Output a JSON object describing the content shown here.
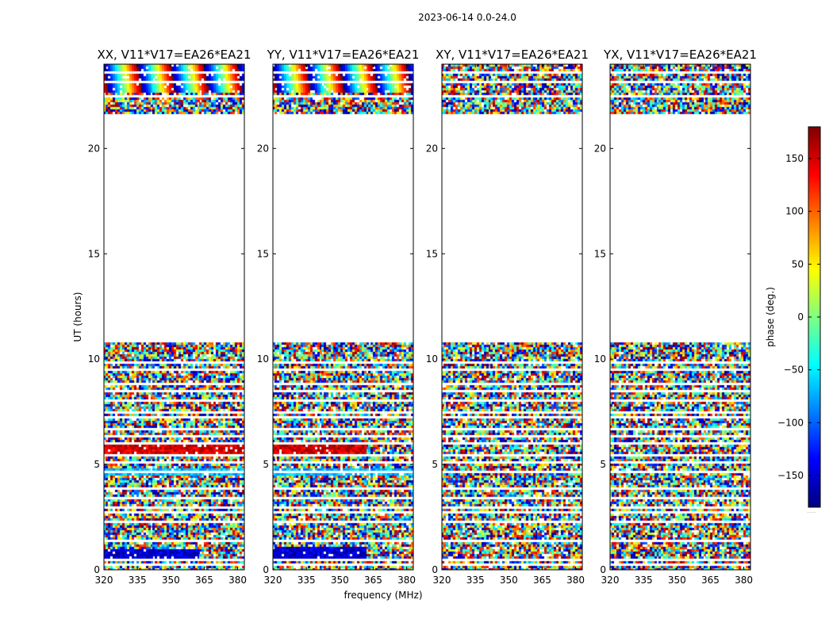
{
  "suptitle": "2023-06-14 0.0-24.0",
  "chart_data": {
    "type": "heatmap",
    "xlabel": "frequency (MHz)",
    "ylabel": "UT (hours)",
    "xlim": [
      320,
      383
    ],
    "ylim": [
      0,
      24
    ],
    "xticks": [
      320,
      335,
      350,
      365,
      380
    ],
    "yticks": [
      0,
      5,
      10,
      15,
      20
    ],
    "panels": [
      {
        "title": "XX, V11*V17=EA26*EA21",
        "pol": "XX"
      },
      {
        "title": "YY, V11*V17=EA26*EA21",
        "pol": "YY"
      },
      {
        "title": "XY, V11*V17=EA26*EA21",
        "pol": "XY"
      },
      {
        "title": "YX, V11*V17=EA26*EA21",
        "pol": "YX"
      }
    ],
    "data_time_ranges_hours": [
      [
        0.0,
        10.75
      ],
      [
        21.6,
        24.0
      ]
    ],
    "gap_rows_hours": [
      0.25,
      0.5,
      1.4,
      2.3,
      2.75,
      3.0,
      3.4,
      3.9,
      4.6,
      5.05,
      5.4,
      5.95,
      6.3,
      6.7,
      7.25,
      7.5,
      8.0,
      8.5,
      8.85,
      9.5,
      9.85,
      22.5,
      23.2,
      23.6
    ],
    "features": [
      {
        "panel": "XX",
        "kind": "band",
        "t0": 0.4,
        "t1": 1.0,
        "fmax": 363,
        "phase_deg": -150
      },
      {
        "panel": "YY",
        "kind": "band",
        "t0": 0.55,
        "t1": 1.05,
        "fmax": 362,
        "phase_deg": -150
      },
      {
        "panel": "XX",
        "kind": "band",
        "t0": 5.35,
        "t1": 5.9,
        "fmax": 383,
        "phase_deg": 150
      },
      {
        "panel": "YY",
        "kind": "band",
        "t0": 5.35,
        "t1": 5.9,
        "fmax": 362,
        "phase_deg": 150
      },
      {
        "panel": "XX",
        "kind": "band",
        "t0": 4.5,
        "t1": 4.8,
        "fmax": 383,
        "phase_deg": -70
      },
      {
        "panel": "YY",
        "kind": "band",
        "t0": 4.5,
        "t1": 4.8,
        "fmax": 383,
        "phase_deg": -70
      },
      {
        "panel": "XX",
        "kind": "fringe",
        "t0": 22.7,
        "t1": 24.0
      },
      {
        "panel": "YY",
        "kind": "fringe",
        "t0": 22.7,
        "t1": 24.0
      }
    ],
    "colorbar": {
      "label": "phase (deg.)",
      "range": [
        -180,
        180
      ],
      "ticks": [
        -150,
        -100,
        -50,
        0,
        50,
        100,
        150
      ],
      "tick_labels": [
        "−150",
        "−100",
        "−50",
        "0",
        "50",
        "100",
        "150"
      ],
      "colormap": "jet",
      "under_label": "......"
    }
  }
}
